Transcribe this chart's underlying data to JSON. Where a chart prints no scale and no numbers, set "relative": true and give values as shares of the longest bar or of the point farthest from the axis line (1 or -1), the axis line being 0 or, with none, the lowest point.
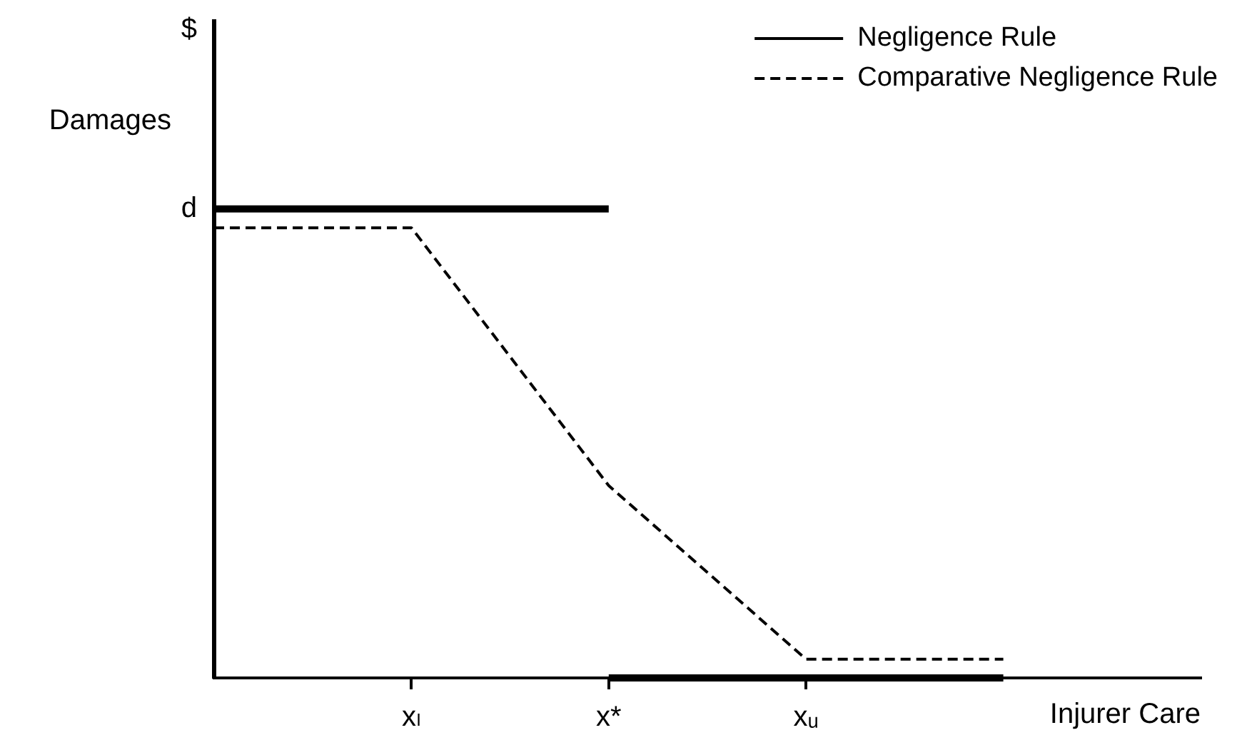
{
  "chart_data": {
    "type": "line",
    "xlabel": "Injurer Care",
    "ylabel": "Damages",
    "relative": true,
    "categories": [
      null,
      "xₗ",
      "x*",
      "xᵤ",
      null,
      null
    ],
    "series": [
      {
        "name": "Negligence Rule",
        "color": "#000000",
        "line_style": "solid",
        "values": [
          1,
          1,
          1,
          null,
          null,
          null
        ]
      },
      {
        "color": "#000000",
        "line_style": "solid",
        "values": [
          null,
          null,
          0,
          0,
          0,
          null
        ]
      },
      {
        "name": "Comparative Negligence Rule",
        "color": "#000000",
        "line_style": "dashed",
        "values": [
          0.96,
          0.96,
          0.41,
          0.04,
          0.04,
          null
        ]
      }
    ],
    "annotations": [
      "$",
      "d"
    ],
    "grid": false,
    "legend": "top right",
    "marker": "none"
  }
}
